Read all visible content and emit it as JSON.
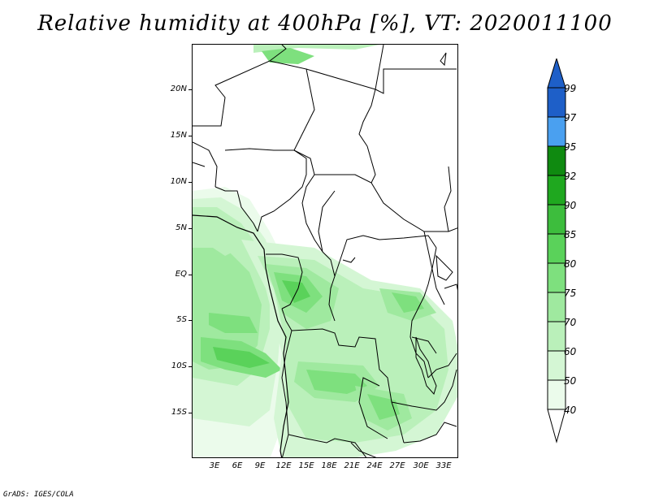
{
  "title": "Relative humidity at 400hPa [%], VT: 2020011100",
  "credit": "GrADS: IGES/COLA",
  "map": {
    "lat_labels": [
      "20N",
      "15N",
      "10N",
      "5N",
      "EQ",
      "5S",
      "10S",
      "15S"
    ],
    "lon_labels": [
      "3E",
      "6E",
      "9E",
      "12E",
      "15E",
      "18E",
      "21E",
      "24E",
      "27E",
      "30E",
      "33E"
    ],
    "land_color": "#ffffff",
    "boundary_color": "#000000"
  },
  "colorbar": {
    "labels": [
      "99",
      "97",
      "95",
      "92",
      "90",
      "85",
      "80",
      "75",
      "70",
      "60",
      "50",
      "40"
    ],
    "colors": [
      "#1e5fc8",
      "#2e7fe0",
      "#4aa0f0",
      "#0f8a10",
      "#1fa81f",
      "#3dbd3d",
      "#5ad25a",
      "#7ee07e",
      "#9fe99f",
      "#baf0ba",
      "#d4f6d4",
      "#ebfbeb"
    ]
  }
}
